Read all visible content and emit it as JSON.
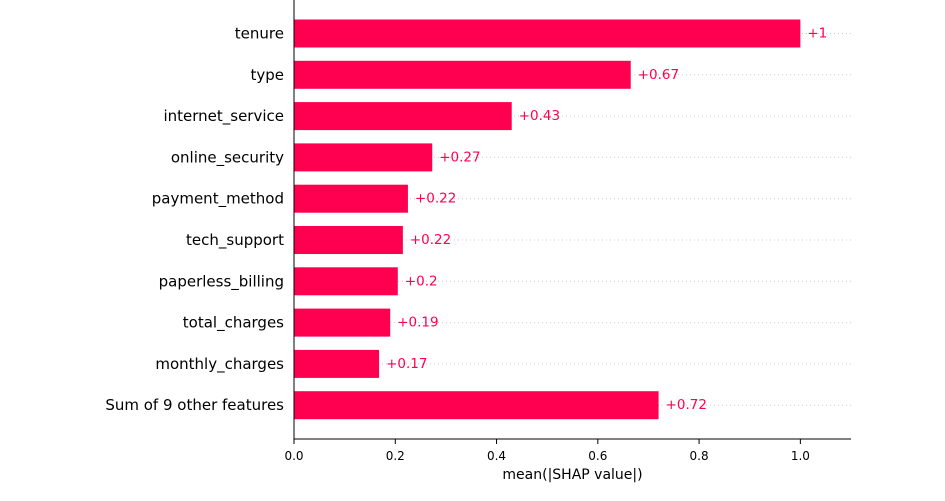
{
  "chart_data": {
    "type": "bar",
    "orientation": "horizontal",
    "title": "",
    "xlabel": "mean(|SHAP value|)",
    "ylabel": "",
    "xlim": [
      0,
      1.1
    ],
    "xticks": [
      0.0,
      0.2,
      0.4,
      0.6,
      0.8,
      1.0
    ],
    "xtick_labels": [
      "0.0",
      "0.2",
      "0.4",
      "0.6",
      "0.8",
      "1.0"
    ],
    "grid": "dotted horizontal guide lines per row",
    "categories": [
      "tenure",
      "type",
      "internet_service",
      "online_security",
      "payment_method",
      "tech_support",
      "paperless_billing",
      "total_charges",
      "monthly_charges",
      "Sum of 9 other features"
    ],
    "values": [
      1.0,
      0.665,
      0.43,
      0.273,
      0.225,
      0.215,
      0.205,
      0.19,
      0.168,
      0.72
    ],
    "value_labels": [
      "+1",
      "+0.67",
      "+0.43",
      "+0.27",
      "+0.22",
      "+0.22",
      "+0.2",
      "+0.19",
      "+0.17",
      "+0.72"
    ],
    "bar_color": "#ff0051",
    "label_color": "#ff0051"
  }
}
